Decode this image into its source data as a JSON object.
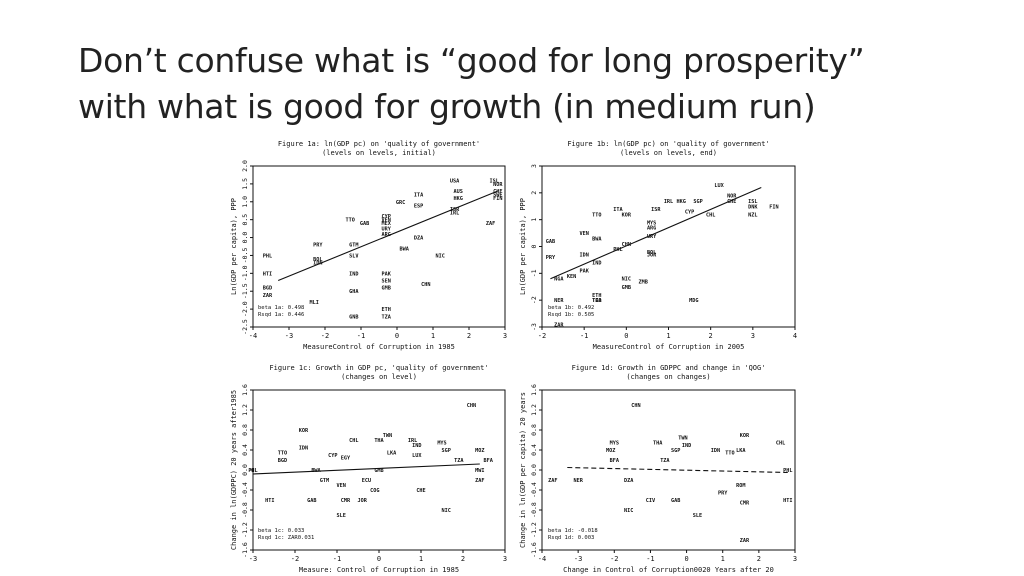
{
  "slide": {
    "title_line1": "Don’t confuse what is “good for long prosperity”",
    "title_line2": "with what is good for growth (in medium run)"
  },
  "chart_data": [
    {
      "type": "scatter",
      "title": "Figure 1a: ln(GDP pc) on 'quality of government'",
      "subtitle": "(levels on levels, initial)",
      "xlabel": "MeasureControl of Corruption in 1985",
      "ylabel": "Ln(GDP per capita), PPP",
      "xlim": [
        -4,
        3
      ],
      "ylim": [
        -2.5,
        2.0
      ],
      "xticks": [
        "-4",
        "-3",
        "-2",
        "-1",
        "0",
        "1",
        "2",
        "3"
      ],
      "yticks": [
        "-2.5",
        "-2.0",
        "-1.5",
        "-1.0",
        "-0.5",
        "0.0",
        "0.5",
        "1.0",
        "1.5",
        "2.0"
      ],
      "stats": [
        "beta 1a: 0.498",
        "Rsqd 1a: 0.446"
      ],
      "fit_line": [
        [
          -3.3,
          -1.2
        ],
        [
          2.8,
          1.3
        ]
      ],
      "points": [
        {
          "label": "USA",
          "x": 1.6,
          "y": 1.6
        },
        {
          "label": "ISL",
          "x": 2.7,
          "y": 1.6
        },
        {
          "label": "NOR",
          "x": 2.8,
          "y": 1.5
        },
        {
          "label": "AUS",
          "x": 1.7,
          "y": 1.3
        },
        {
          "label": "CHE",
          "x": 2.8,
          "y": 1.3
        },
        {
          "label": "SWE",
          "x": 2.8,
          "y": 1.2
        },
        {
          "label": "FIN",
          "x": 2.8,
          "y": 1.1
        },
        {
          "label": "HKG",
          "x": 1.7,
          "y": 1.1
        },
        {
          "label": "ITA",
          "x": 0.6,
          "y": 1.2
        },
        {
          "label": "ESP",
          "x": 0.6,
          "y": 0.9
        },
        {
          "label": "GRC",
          "x": 0.1,
          "y": 1.0
        },
        {
          "label": "ISR",
          "x": 1.6,
          "y": 0.8
        },
        {
          "label": "IRL",
          "x": 1.6,
          "y": 0.7
        },
        {
          "label": "CYP",
          "x": -0.3,
          "y": 0.6
        },
        {
          "label": "VEN",
          "x": -0.3,
          "y": 0.5
        },
        {
          "label": "MEX",
          "x": -0.3,
          "y": 0.4
        },
        {
          "label": "TTO",
          "x": -1.3,
          "y": 0.5
        },
        {
          "label": "GAB",
          "x": -0.9,
          "y": 0.4
        },
        {
          "label": "URY",
          "x": -0.3,
          "y": 0.25
        },
        {
          "label": "ARG",
          "x": -0.3,
          "y": 0.1
        },
        {
          "label": "DZA",
          "x": 0.6,
          "y": 0.0
        },
        {
          "label": "ZAF",
          "x": 2.6,
          "y": 0.4
        },
        {
          "label": "GTM",
          "x": -1.2,
          "y": -0.2
        },
        {
          "label": "PRY",
          "x": -2.2,
          "y": -0.2
        },
        {
          "label": "BWA",
          "x": 0.2,
          "y": -0.3
        },
        {
          "label": "NIC",
          "x": 1.2,
          "y": -0.5
        },
        {
          "label": "PHL",
          "x": -3.6,
          "y": -0.5
        },
        {
          "label": "BOL",
          "x": -2.2,
          "y": -0.6
        },
        {
          "label": "IDN",
          "x": -2.2,
          "y": -0.7
        },
        {
          "label": "SLV",
          "x": -1.2,
          "y": -0.5
        },
        {
          "label": "HTI",
          "x": -3.6,
          "y": -1.0
        },
        {
          "label": "IND",
          "x": -1.2,
          "y": -1.0
        },
        {
          "label": "PAK",
          "x": -0.3,
          "y": -1.0
        },
        {
          "label": "SEN",
          "x": -0.3,
          "y": -1.2
        },
        {
          "label": "CHN",
          "x": 0.8,
          "y": -1.3
        },
        {
          "label": "GHA",
          "x": -1.2,
          "y": -1.5
        },
        {
          "label": "BGD",
          "x": -3.6,
          "y": -1.4
        },
        {
          "label": "ZAR",
          "x": -3.6,
          "y": -1.6
        },
        {
          "label": "GMB",
          "x": -0.3,
          "y": -1.4
        },
        {
          "label": "MLI",
          "x": -2.3,
          "y": -1.8
        },
        {
          "label": "ETH",
          "x": -0.3,
          "y": -2.0
        },
        {
          "label": "GNB",
          "x": -1.2,
          "y": -2.2
        },
        {
          "label": "TZA",
          "x": -0.3,
          "y": -2.2
        }
      ]
    },
    {
      "type": "scatter",
      "title": "Figure 1b: ln(GDP pc) on 'quality of government'",
      "subtitle": "(levels on levels, end)",
      "xlabel": "MeasureControl of Corruption in 2005",
      "ylabel": "Ln(GDP per capita), PPP",
      "xlim": [
        -2,
        4
      ],
      "ylim": [
        -3,
        3
      ],
      "xticks": [
        "-2",
        "-1",
        "0",
        "1",
        "2",
        "3",
        "4"
      ],
      "yticks": [
        "-3",
        "-2",
        "-1",
        "0",
        "1",
        "2",
        "3"
      ],
      "stats": [
        "beta 1b: 0.492",
        "Rsqd 1b: 0.505"
      ],
      "fit_line": [
        [
          -1.8,
          -1.2
        ],
        [
          3.2,
          2.2
        ]
      ],
      "points": [
        {
          "label": "LUX",
          "x": 2.2,
          "y": 2.3
        },
        {
          "label": "NOR",
          "x": 2.5,
          "y": 1.9
        },
        {
          "label": "CHE",
          "x": 2.5,
          "y": 1.7
        },
        {
          "label": "IRL",
          "x": 1.0,
          "y": 1.7
        },
        {
          "label": "HKG",
          "x": 1.3,
          "y": 1.7
        },
        {
          "label": "SGP",
          "x": 1.7,
          "y": 1.7
        },
        {
          "label": "ISL",
          "x": 3.0,
          "y": 1.7
        },
        {
          "label": "DNK",
          "x": 3.0,
          "y": 1.5
        },
        {
          "label": "FIN",
          "x": 3.5,
          "y": 1.5
        },
        {
          "label": "NZL",
          "x": 3.0,
          "y": 1.2
        },
        {
          "label": "CHL",
          "x": 2.0,
          "y": 1.2
        },
        {
          "label": "ITA",
          "x": -0.2,
          "y": 1.4
        },
        {
          "label": "ISR",
          "x": 0.7,
          "y": 1.4
        },
        {
          "label": "KOR",
          "x": 0.0,
          "y": 1.2
        },
        {
          "label": "TTO",
          "x": -0.7,
          "y": 1.2
        },
        {
          "label": "CYP",
          "x": 1.5,
          "y": 1.3
        },
        {
          "label": "MYS",
          "x": 0.6,
          "y": 0.9
        },
        {
          "label": "ARG",
          "x": 0.6,
          "y": 0.7
        },
        {
          "label": "VEN",
          "x": -1.0,
          "y": 0.5
        },
        {
          "label": "BWA",
          "x": -0.7,
          "y": 0.3
        },
        {
          "label": "GAB",
          "x": -1.8,
          "y": 0.2
        },
        {
          "label": "URY",
          "x": 0.6,
          "y": 0.4
        },
        {
          "label": "IDN",
          "x": -1.0,
          "y": -0.3
        },
        {
          "label": "PRY",
          "x": -1.8,
          "y": -0.4
        },
        {
          "label": "PHL",
          "x": -0.2,
          "y": -0.1
        },
        {
          "label": "CHN",
          "x": 0.0,
          "y": 0.1
        },
        {
          "label": "JOR",
          "x": 0.6,
          "y": -0.3
        },
        {
          "label": "BOL",
          "x": 0.6,
          "y": -0.2
        },
        {
          "label": "IND",
          "x": -0.7,
          "y": -0.6
        },
        {
          "label": "PAK",
          "x": -1.0,
          "y": -0.9
        },
        {
          "label": "NGA",
          "x": -1.6,
          "y": -1.2
        },
        {
          "label": "NIC",
          "x": 0.0,
          "y": -1.2
        },
        {
          "label": "ZMB",
          "x": 0.4,
          "y": -1.3
        },
        {
          "label": "KEN",
          "x": -1.3,
          "y": -1.1
        },
        {
          "label": "GMB",
          "x": 0.0,
          "y": -1.5
        },
        {
          "label": "MDG",
          "x": 1.6,
          "y": -2.0
        },
        {
          "label": "NER",
          "x": -1.6,
          "y": -2.0
        },
        {
          "label": "TGO",
          "x": -0.7,
          "y": -2.0
        },
        {
          "label": "TZA",
          "x": -0.7,
          "y": -2.0
        },
        {
          "label": "ETH",
          "x": -0.7,
          "y": -1.8
        },
        {
          "label": "ZAR",
          "x": -1.6,
          "y": -2.9
        }
      ]
    },
    {
      "type": "scatter",
      "title": "Figure 1c: Growth in GDP pc, 'quality of government'",
      "subtitle": "(changes on level)",
      "xlabel": "Measure: Control of Corruption in 1985",
      "ylabel": "Change in ln(GDPPC) 20 years after1985",
      "xlim": [
        -3,
        3
      ],
      "ylim": [
        -1.6,
        1.6
      ],
      "xticks": [
        "-3",
        "-2",
        "-1",
        "0",
        "1",
        "2",
        "3"
      ],
      "yticks": [
        "-1.6",
        "-1.2",
        "-0.8",
        "-0.4",
        "0.0",
        "0.4",
        "0.8",
        "1.2",
        "1.6"
      ],
      "stats": [
        "beta 1c: 0.033",
        "Rsqd 1c: ZAR0.031"
      ],
      "fit_line": [
        [
          -3.0,
          -0.08
        ],
        [
          2.4,
          0.12
        ]
      ],
      "points": [
        {
          "label": "CHN",
          "x": 2.2,
          "y": 1.3
        },
        {
          "label": "KOR",
          "x": -1.8,
          "y": 0.8
        },
        {
          "label": "TWN",
          "x": 0.2,
          "y": 0.7
        },
        {
          "label": "CHL",
          "x": -0.6,
          "y": 0.6
        },
        {
          "label": "THA",
          "x": 0.0,
          "y": 0.6
        },
        {
          "label": "IRL",
          "x": 0.8,
          "y": 0.6
        },
        {
          "label": "IND",
          "x": 0.9,
          "y": 0.5
        },
        {
          "label": "MYS",
          "x": 1.5,
          "y": 0.55
        },
        {
          "label": "SGP",
          "x": 1.6,
          "y": 0.4
        },
        {
          "label": "IDN",
          "x": -1.8,
          "y": 0.45
        },
        {
          "label": "TTO",
          "x": -2.3,
          "y": 0.35
        },
        {
          "label": "BGD",
          "x": -2.3,
          "y": 0.2
        },
        {
          "label": "CYP",
          "x": -1.1,
          "y": 0.3
        },
        {
          "label": "EGY",
          "x": -0.8,
          "y": 0.25
        },
        {
          "label": "LKA",
          "x": 0.3,
          "y": 0.35
        },
        {
          "label": "LUX",
          "x": 0.9,
          "y": 0.3
        },
        {
          "label": "MOZ",
          "x": 2.4,
          "y": 0.4
        },
        {
          "label": "TZA",
          "x": 1.9,
          "y": 0.2
        },
        {
          "label": "BFA",
          "x": 2.6,
          "y": 0.2
        },
        {
          "label": "PHL",
          "x": -3.0,
          "y": 0.0
        },
        {
          "label": "BWA",
          "x": -1.5,
          "y": 0.0
        },
        {
          "label": "GMB",
          "x": 0.0,
          "y": 0.0
        },
        {
          "label": "MWI",
          "x": 2.4,
          "y": 0.0
        },
        {
          "label": "ZAF",
          "x": 2.4,
          "y": -0.2
        },
        {
          "label": "GTM",
          "x": -1.3,
          "y": -0.2
        },
        {
          "label": "VEN",
          "x": -0.9,
          "y": -0.3
        },
        {
          "label": "ECU",
          "x": -0.3,
          "y": -0.2
        },
        {
          "label": "COG",
          "x": -0.1,
          "y": -0.4
        },
        {
          "label": "CHE",
          "x": 1.0,
          "y": -0.4
        },
        {
          "label": "HTI",
          "x": -2.6,
          "y": -0.6
        },
        {
          "label": "GAB",
          "x": -1.6,
          "y": -0.6
        },
        {
          "label": "CMR",
          "x": -0.8,
          "y": -0.6
        },
        {
          "label": "JOR",
          "x": -0.4,
          "y": -0.6
        },
        {
          "label": "SLE",
          "x": -0.9,
          "y": -0.9
        },
        {
          "label": "NIC",
          "x": 1.6,
          "y": -0.8
        }
      ]
    },
    {
      "type": "scatter",
      "title": "Figure 1d: Growth in GDPPC and change in 'QOG'",
      "subtitle": "(changes on changes)",
      "xlabel": "Change in Control of Corruption0020 Years after 20",
      "ylabel": "Change in ln(GDP per capita) 20 years",
      "xlim": [
        -4,
        3
      ],
      "ylim": [
        -1.6,
        1.6
      ],
      "xticks": [
        "-4",
        "-3",
        "-2",
        "-1",
        "0",
        "1",
        "2",
        "3"
      ],
      "yticks": [
        "-1.6",
        "-1.2",
        "-0.8",
        "-0.4",
        "0.0",
        "0.4",
        "0.8",
        "1.2",
        "1.6"
      ],
      "stats": [
        "beta 1d: -0.018",
        "Rsqd 1d: 0.003"
      ],
      "fit_line": [
        [
          -3.3,
          0.05
        ],
        [
          2.8,
          -0.05
        ]
      ],
      "points": [
        {
          "label": "CHN",
          "x": -1.4,
          "y": 1.3
        },
        {
          "label": "KOR",
          "x": 1.6,
          "y": 0.7
        },
        {
          "label": "TWN",
          "x": -0.1,
          "y": 0.65
        },
        {
          "label": "MYS",
          "x": -2.0,
          "y": 0.55
        },
        {
          "label": "THA",
          "x": -0.8,
          "y": 0.55
        },
        {
          "label": "IND",
          "x": 0.0,
          "y": 0.5
        },
        {
          "label": "CHL",
          "x": 2.6,
          "y": 0.55
        },
        {
          "label": "MOZ",
          "x": -2.1,
          "y": 0.4
        },
        {
          "label": "SGP",
          "x": -0.3,
          "y": 0.4
        },
        {
          "label": "IDN",
          "x": 0.8,
          "y": 0.4
        },
        {
          "label": "TTO",
          "x": 1.2,
          "y": 0.35
        },
        {
          "label": "LKA",
          "x": 1.5,
          "y": 0.4
        },
        {
          "label": "BFA",
          "x": -2.0,
          "y": 0.2
        },
        {
          "label": "TZA",
          "x": -0.6,
          "y": 0.2
        },
        {
          "label": "ZAF",
          "x": -3.7,
          "y": -0.2
        },
        {
          "label": "NER",
          "x": -3.0,
          "y": -0.2
        },
        {
          "label": "DZA",
          "x": -1.6,
          "y": -0.2
        },
        {
          "label": "PHL",
          "x": 2.8,
          "y": 0.0
        },
        {
          "label": "ROM",
          "x": 1.5,
          "y": -0.3
        },
        {
          "label": "PRY",
          "x": 1.0,
          "y": -0.45
        },
        {
          "label": "CIV",
          "x": -1.0,
          "y": -0.6
        },
        {
          "label": "GAB",
          "x": -0.3,
          "y": -0.6
        },
        {
          "label": "CMR",
          "x": 1.6,
          "y": -0.65
        },
        {
          "label": "HTI",
          "x": 2.8,
          "y": -0.6
        },
        {
          "label": "NIC",
          "x": -1.6,
          "y": -0.8
        },
        {
          "label": "SLE",
          "x": 0.3,
          "y": -0.9
        },
        {
          "label": "ZAR",
          "x": 1.6,
          "y": -1.4
        }
      ]
    }
  ]
}
